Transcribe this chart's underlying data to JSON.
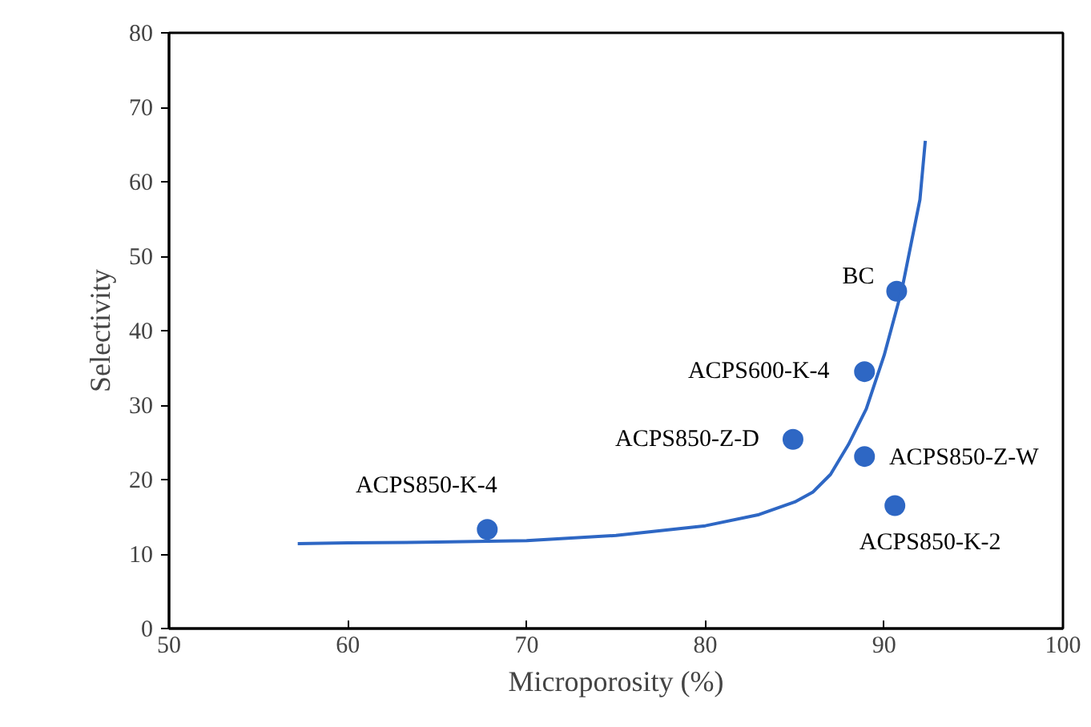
{
  "chart_data": {
    "type": "scatter",
    "xlabel": "Microporosity (%)",
    "ylabel": "Selectivity",
    "xlim": [
      50,
      100
    ],
    "xticks": [
      50,
      60,
      70,
      80,
      90,
      100
    ],
    "ylim": [
      0,
      80
    ],
    "yticks": [
      0,
      10,
      20,
      30,
      40,
      50,
      60,
      70,
      80
    ],
    "grid": false,
    "series": [
      {
        "marker": "circle",
        "color": "#2e67c4",
        "x": [
          67.8,
          84.9,
          88.9,
          90.7,
          88.9,
          90.6
        ],
        "values": [
          13.3,
          25.4,
          34.5,
          45.3,
          23.1,
          16.5
        ]
      },
      {
        "type": "line",
        "color": "#2e67c4",
        "line_style": "solid",
        "x": [
          57.2,
          60,
          65,
          70,
          75,
          80,
          83,
          85,
          86,
          87,
          88,
          89,
          90,
          91,
          92,
          92.3
        ],
        "values": [
          11.4,
          11.5,
          11.6,
          11.8,
          12.5,
          13.8,
          15.3,
          17.0,
          18.3,
          20.7,
          24.7,
          29.5,
          36.7,
          45.6,
          57.6,
          65.5
        ]
      }
    ],
    "annotations": [
      {
        "text": "ACPS850-K-4",
        "x": 67.8,
        "y": 13.3
      },
      {
        "text": "ACPS850-Z-D",
        "x": 84.9,
        "y": 25.4
      },
      {
        "text": "ACPS600-K-4",
        "x": 88.9,
        "y": 34.5
      },
      {
        "text": "BC",
        "x": 90.7,
        "y": 45.3
      },
      {
        "text": "ACPS850-Z-W",
        "x": 88.9,
        "y": 23.1
      },
      {
        "text": "ACPS850-K-2",
        "x": 90.6,
        "y": 16.5
      }
    ]
  }
}
